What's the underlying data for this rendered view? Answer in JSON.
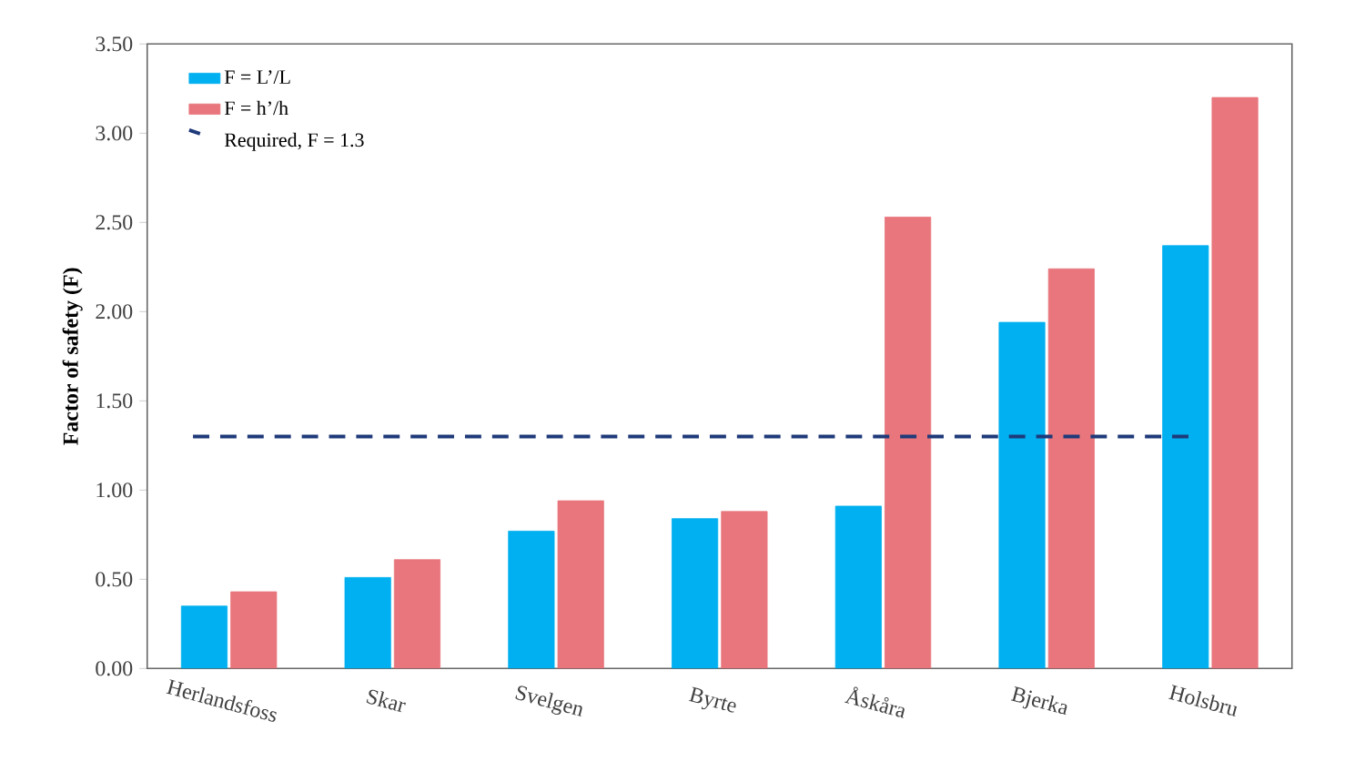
{
  "chart_data": {
    "type": "bar",
    "ylabel": "Factor of safety (F)",
    "categories": [
      "Herlandsfoss",
      "Skar",
      "Svelgen",
      "Byrte",
      "Åskåra",
      "Bjerka",
      "Holsbru"
    ],
    "series": [
      {
        "name": "F = L’/L",
        "color": "#00b0f0",
        "values": [
          0.35,
          0.51,
          0.77,
          0.84,
          0.91,
          1.94,
          2.37
        ]
      },
      {
        "name": "F = h’/h",
        "color": "#e8767c",
        "values": [
          0.43,
          0.61,
          0.94,
          0.88,
          2.53,
          2.24,
          3.2
        ]
      }
    ],
    "ref_lines": [
      {
        "axis": "y",
        "value": 1.3,
        "label": "Required, F = 1.3",
        "color": "#1f3a7a",
        "line_style": "dashed"
      }
    ],
    "ylim": [
      0,
      3.5
    ],
    "yticks": [
      {
        "value": 0,
        "label": "0.00"
      },
      {
        "value": 0.5,
        "label": "0.50"
      },
      {
        "value": 1,
        "label": "1.00"
      },
      {
        "value": 1.5,
        "label": "1.50"
      },
      {
        "value": 2,
        "label": "2.00"
      },
      {
        "value": 2.5,
        "label": "2.50"
      },
      {
        "value": 3,
        "label": "3.00"
      },
      {
        "value": 3.5,
        "label": "3.50"
      }
    ],
    "grid": false,
    "legend": "top left"
  }
}
